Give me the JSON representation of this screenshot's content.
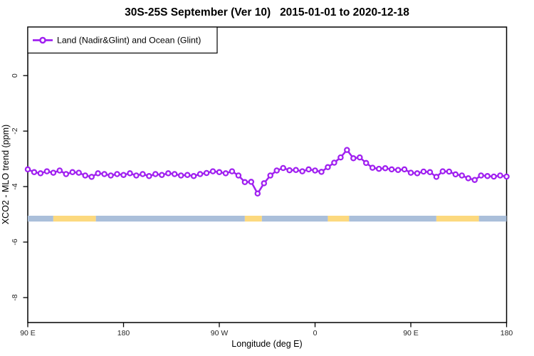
{
  "title": "30S-25S September (Ver 10)   2015-01-01 to 2020-12-18",
  "legend": {
    "label": "Land (Nadir&Glint) and Ocean (Glint)",
    "symbol": "open-circle-on-line"
  },
  "axes": {
    "x": {
      "label": "Longitude (deg E)"
    },
    "y": {
      "label": "XCO2 - MLO trend (ppm)"
    }
  },
  "colors": {
    "series": "#A020F0",
    "ocean_band": "#AABFDA",
    "land_band": "#FCD97E",
    "axis": "#000000",
    "tick_text": "#262626"
  },
  "chart_data": {
    "type": "line",
    "title": "30S-25S September (Ver 10)   2015-01-01 to 2020-12-18",
    "xlabel": "Longitude (deg E)",
    "ylabel": "XCO2 - MLO trend (ppm)",
    "x_axis_note": "x = degrees eastward along axis starting at 90E (axis wraps: 90E > 180 > 90W > 0 > 90E > 180)",
    "xlim": [
      0,
      450
    ],
    "ylim": [
      -8.9,
      1.75
    ],
    "grid": false,
    "legend_position": "top-left",
    "x_ticks": {
      "positions": [
        0,
        90,
        180,
        270,
        360,
        450
      ],
      "labels": [
        "90 E",
        "180",
        "90 W",
        "0",
        "90 E",
        "180"
      ]
    },
    "y_ticks": {
      "values": [
        0,
        -2,
        -4,
        -6,
        -8
      ],
      "labels": [
        "0",
        "-2",
        "-4",
        "-6",
        "-8"
      ]
    },
    "series": [
      {
        "name": "Land (Nadir&Glint) and Ocean (Glint)",
        "marker": "open-circle",
        "color": "#A020F0",
        "x": [
          0,
          6,
          12,
          18,
          24,
          30,
          36,
          42,
          48,
          54,
          60,
          66,
          72,
          78,
          84,
          90,
          96,
          102,
          108,
          114,
          120,
          126,
          132,
          138,
          144,
          150,
          156,
          162,
          168,
          174,
          180,
          186,
          192,
          198,
          204,
          210,
          216,
          222,
          228,
          234,
          240,
          246,
          252,
          258,
          264,
          270,
          276,
          282,
          288,
          294,
          300,
          306,
          312,
          318,
          324,
          330,
          336,
          342,
          348,
          354,
          360,
          366,
          372,
          378,
          384,
          390,
          396,
          402,
          408,
          414,
          420,
          426,
          432,
          438,
          444,
          450
        ],
        "y": [
          -3.38,
          -3.48,
          -3.52,
          -3.45,
          -3.5,
          -3.42,
          -3.55,
          -3.48,
          -3.5,
          -3.6,
          -3.65,
          -3.52,
          -3.55,
          -3.6,
          -3.55,
          -3.58,
          -3.52,
          -3.6,
          -3.55,
          -3.62,
          -3.55,
          -3.58,
          -3.52,
          -3.55,
          -3.6,
          -3.58,
          -3.62,
          -3.55,
          -3.51,
          -3.45,
          -3.48,
          -3.52,
          -3.45,
          -3.6,
          -3.84,
          -3.83,
          -4.25,
          -3.88,
          -3.6,
          -3.42,
          -3.33,
          -3.41,
          -3.4,
          -3.45,
          -3.38,
          -3.42,
          -3.47,
          -3.3,
          -3.14,
          -2.95,
          -2.68,
          -2.98,
          -2.95,
          -3.15,
          -3.32,
          -3.36,
          -3.34,
          -3.38,
          -3.4,
          -3.38,
          -3.5,
          -3.52,
          -3.46,
          -3.48,
          -3.65,
          -3.45,
          -3.46,
          -3.56,
          -3.6,
          -3.7,
          -3.76,
          -3.6,
          -3.62,
          -3.64,
          -3.6,
          -3.64
        ]
      }
    ],
    "surface_band": {
      "description": "horizontal strip near y=-5.1 showing surface type vs longitude",
      "y_range": [
        -5.26,
        -5.05
      ],
      "regions": [
        {
          "start": 0,
          "end": 24,
          "type": "ocean"
        },
        {
          "start": 24,
          "end": 64,
          "type": "land"
        },
        {
          "start": 64,
          "end": 204,
          "type": "ocean"
        },
        {
          "start": 204,
          "end": 220,
          "type": "land"
        },
        {
          "start": 220,
          "end": 282,
          "type": "ocean"
        },
        {
          "start": 282,
          "end": 302,
          "type": "land"
        },
        {
          "start": 302,
          "end": 384,
          "type": "ocean"
        },
        {
          "start": 384,
          "end": 424,
          "type": "land"
        },
        {
          "start": 424,
          "end": 450,
          "type": "ocean"
        }
      ]
    }
  }
}
